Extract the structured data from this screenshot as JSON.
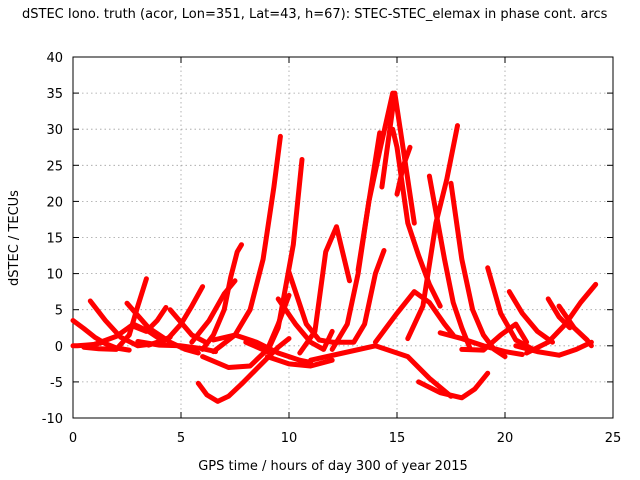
{
  "chart_data": {
    "type": "line",
    "title": "dSTEC Iono. truth (acor, Lon=351, Lat=43, h=67): STEC-STEC_elemax in phase cont. arcs",
    "xlabel": "GPS time / hours of day 300 of year 2015",
    "ylabel": "dSTEC  / TECUs",
    "xlim": [
      0,
      25
    ],
    "ylim": [
      -10,
      40
    ],
    "xticks": [
      0,
      5,
      10,
      15,
      20,
      25
    ],
    "yticks": [
      -10,
      -5,
      0,
      5,
      10,
      15,
      20,
      25,
      30,
      35,
      40
    ],
    "grid": true,
    "legend": "none",
    "color": "#ff0000",
    "series": [
      {
        "x": [
          0.0,
          0.2,
          0.6,
          1.0,
          1.4
        ],
        "y": [
          0.0,
          0.0,
          0.1,
          0.2,
          0.5
        ]
      },
      {
        "x": [
          0.0,
          0.5,
          1.0,
          1.5,
          2.0,
          2.6
        ],
        "y": [
          3.5,
          2.4,
          1.2,
          0.3,
          -0.3,
          -0.6
        ]
      },
      {
        "x": [
          0.8,
          1.5,
          2.2,
          3.0,
          3.8,
          4.5
        ],
        "y": [
          6.2,
          3.5,
          1.2,
          0.0,
          0.3,
          1.2
        ]
      },
      {
        "x": [
          0.5,
          1.2,
          2.0,
          2.6,
          3.0,
          3.4
        ],
        "y": [
          -0.2,
          -0.4,
          -0.5,
          1.5,
          5.5,
          9.3
        ]
      },
      {
        "x": [
          1.0,
          2.0,
          2.8,
          3.5,
          4.2
        ],
        "y": [
          0.2,
          1.3,
          3.0,
          2.0,
          0.6
        ]
      },
      {
        "x": [
          2.5,
          3.5,
          4.5,
          5.2,
          5.8
        ],
        "y": [
          5.9,
          2.5,
          0.5,
          -0.5,
          -1.0
        ]
      },
      {
        "x": [
          3.0,
          4.0,
          5.0,
          6.0,
          6.6
        ],
        "y": [
          0.6,
          0.1,
          0.0,
          -0.4,
          -0.8
        ]
      },
      {
        "x": [
          2.8,
          3.4,
          3.9,
          4.3
        ],
        "y": [
          2.7,
          2.0,
          3.5,
          5.3
        ]
      },
      {
        "x": [
          4.5,
          5.5,
          6.2
        ],
        "y": [
          5.0,
          1.5,
          0.4
        ]
      },
      {
        "x": [
          3.5,
          4.4,
          5.0,
          5.5,
          6.0
        ],
        "y": [
          0.1,
          1.0,
          3.0,
          5.5,
          8.2
        ]
      },
      {
        "x": [
          5.8,
          6.2,
          6.7,
          7.2,
          7.8,
          8.5,
          9.5,
          10.0
        ],
        "y": [
          -5.2,
          -6.8,
          -7.7,
          -7.0,
          -5.3,
          -3.2,
          -0.2,
          1.0
        ]
      },
      {
        "x": [
          6.0,
          6.5,
          7.0,
          7.3,
          7.6,
          7.8
        ],
        "y": [
          -0.5,
          1.5,
          5.0,
          9.5,
          13.0,
          14.0
        ]
      },
      {
        "x": [
          5.5,
          6.3,
          7.0,
          7.5
        ],
        "y": [
          0.5,
          3.5,
          7.2,
          9.0
        ]
      },
      {
        "x": [
          6.5,
          7.5,
          8.2,
          8.8,
          9.3,
          9.6
        ],
        "y": [
          -0.8,
          1.5,
          5.0,
          12.0,
          22.0,
          29.0
        ]
      },
      {
        "x": [
          6.0,
          7.2,
          8.2,
          9.0,
          9.5,
          10.0
        ],
        "y": [
          -1.5,
          -3.0,
          -2.8,
          -0.5,
          3.0,
          7.0
        ]
      },
      {
        "x": [
          6.5,
          7.5,
          8.5,
          9.5,
          10.5,
          11.0
        ],
        "y": [
          0.8,
          1.5,
          0.5,
          -1.0,
          -2.0,
          -2.3
        ]
      },
      {
        "x": [
          8.0,
          9.0,
          9.5,
          10.2,
          10.6
        ],
        "y": [
          0.5,
          -0.8,
          2.5,
          14.0,
          25.8
        ]
      },
      {
        "x": [
          9.5,
          10.3,
          11.0,
          11.6,
          12.0
        ],
        "y": [
          6.5,
          3.0,
          0.5,
          -0.5,
          2.0
        ]
      },
      {
        "x": [
          10.0,
          10.8,
          11.4,
          12.0
        ],
        "y": [
          10.2,
          3.0,
          0.8,
          0.5
        ]
      },
      {
        "x": [
          9.0,
          10.0,
          11.0,
          12.0
        ],
        "y": [
          -1.5,
          -2.5,
          -2.8,
          -2.0
        ]
      },
      {
        "x": [
          10.5,
          11.2,
          11.7,
          12.2,
          12.8
        ],
        "y": [
          -1.0,
          2.0,
          13.0,
          16.5,
          9.0
        ]
      },
      {
        "x": [
          12.0,
          13.0,
          13.5,
          14.0,
          14.4
        ],
        "y": [
          0.5,
          0.5,
          3.0,
          10.0,
          13.2
        ]
      },
      {
        "x": [
          12.0,
          12.7,
          13.2,
          13.7,
          14.2
        ],
        "y": [
          -0.5,
          3.0,
          10.0,
          20.0,
          29.5
        ]
      },
      {
        "x": [
          13.2,
          13.7,
          14.2,
          14.8
        ],
        "y": [
          10.5,
          20.0,
          27.0,
          35.0
        ]
      },
      {
        "x": [
          14.3,
          14.9,
          15.3,
          15.8
        ],
        "y": [
          22.0,
          35.0,
          27.0,
          17.0
        ]
      },
      {
        "x": [
          14.8,
          15.0,
          15.5,
          16.0,
          16.5,
          17.0
        ],
        "y": [
          30.0,
          27.5,
          17.0,
          12.5,
          8.5,
          5.5
        ]
      },
      {
        "x": [
          15.0,
          15.3,
          15.6
        ],
        "y": [
          21.0,
          25.0,
          27.5
        ]
      },
      {
        "x": [
          11.0,
          12.5,
          14.0,
          15.5,
          16.5,
          17.5
        ],
        "y": [
          -2.0,
          -1.0,
          0.0,
          -1.5,
          -4.5,
          -7.0
        ]
      },
      {
        "x": [
          14.0,
          15.0,
          15.8,
          16.5,
          17.2,
          17.6
        ],
        "y": [
          0.5,
          4.5,
          7.5,
          6.0,
          3.0,
          1.5
        ]
      },
      {
        "x": [
          15.5,
          16.2,
          16.8,
          17.3,
          17.8
        ],
        "y": [
          1.0,
          5.5,
          17.0,
          23.0,
          30.5
        ]
      },
      {
        "x": [
          16.5,
          17.2,
          17.6,
          18.0,
          18.4
        ],
        "y": [
          23.5,
          12.0,
          6.0,
          2.5,
          -0.5
        ]
      },
      {
        "x": [
          17.5,
          18.0,
          18.5,
          19.0,
          19.5,
          20.0
        ],
        "y": [
          22.5,
          12.0,
          5.0,
          1.5,
          -0.5,
          -1.5
        ]
      },
      {
        "x": [
          16.0,
          17.0,
          18.0,
          18.6,
          19.2
        ],
        "y": [
          -5.0,
          -6.5,
          -7.2,
          -6.0,
          -3.8
        ]
      },
      {
        "x": [
          17.0,
          18.0,
          19.0,
          20.0,
          20.8
        ],
        "y": [
          1.8,
          1.0,
          0.0,
          -0.8,
          -1.2
        ]
      },
      {
        "x": [
          18.0,
          19.0,
          19.8,
          20.5,
          21.0
        ],
        "y": [
          -0.5,
          -0.6,
          1.5,
          3.0,
          0.5
        ]
      },
      {
        "x": [
          19.2,
          19.8,
          20.5,
          21.3
        ],
        "y": [
          10.8,
          4.5,
          0.8,
          -0.5
        ]
      },
      {
        "x": [
          20.2,
          20.8,
          21.5,
          22.2
        ],
        "y": [
          7.5,
          4.5,
          2.0,
          0.5
        ]
      },
      {
        "x": [
          20.5,
          21.5,
          22.5,
          23.3,
          24.0
        ],
        "y": [
          0.0,
          -0.8,
          -1.3,
          -0.5,
          0.5
        ]
      },
      {
        "x": [
          21.0,
          22.0,
          22.8,
          23.5,
          24.2
        ],
        "y": [
          -1.0,
          0.5,
          3.0,
          6.0,
          8.5
        ]
      },
      {
        "x": [
          22.0,
          22.5,
          23.0
        ],
        "y": [
          6.5,
          4.0,
          2.5
        ]
      },
      {
        "x": [
          22.5,
          23.2,
          23.8,
          24.0
        ],
        "y": [
          5.5,
          2.5,
          0.8,
          0.0
        ]
      }
    ]
  }
}
